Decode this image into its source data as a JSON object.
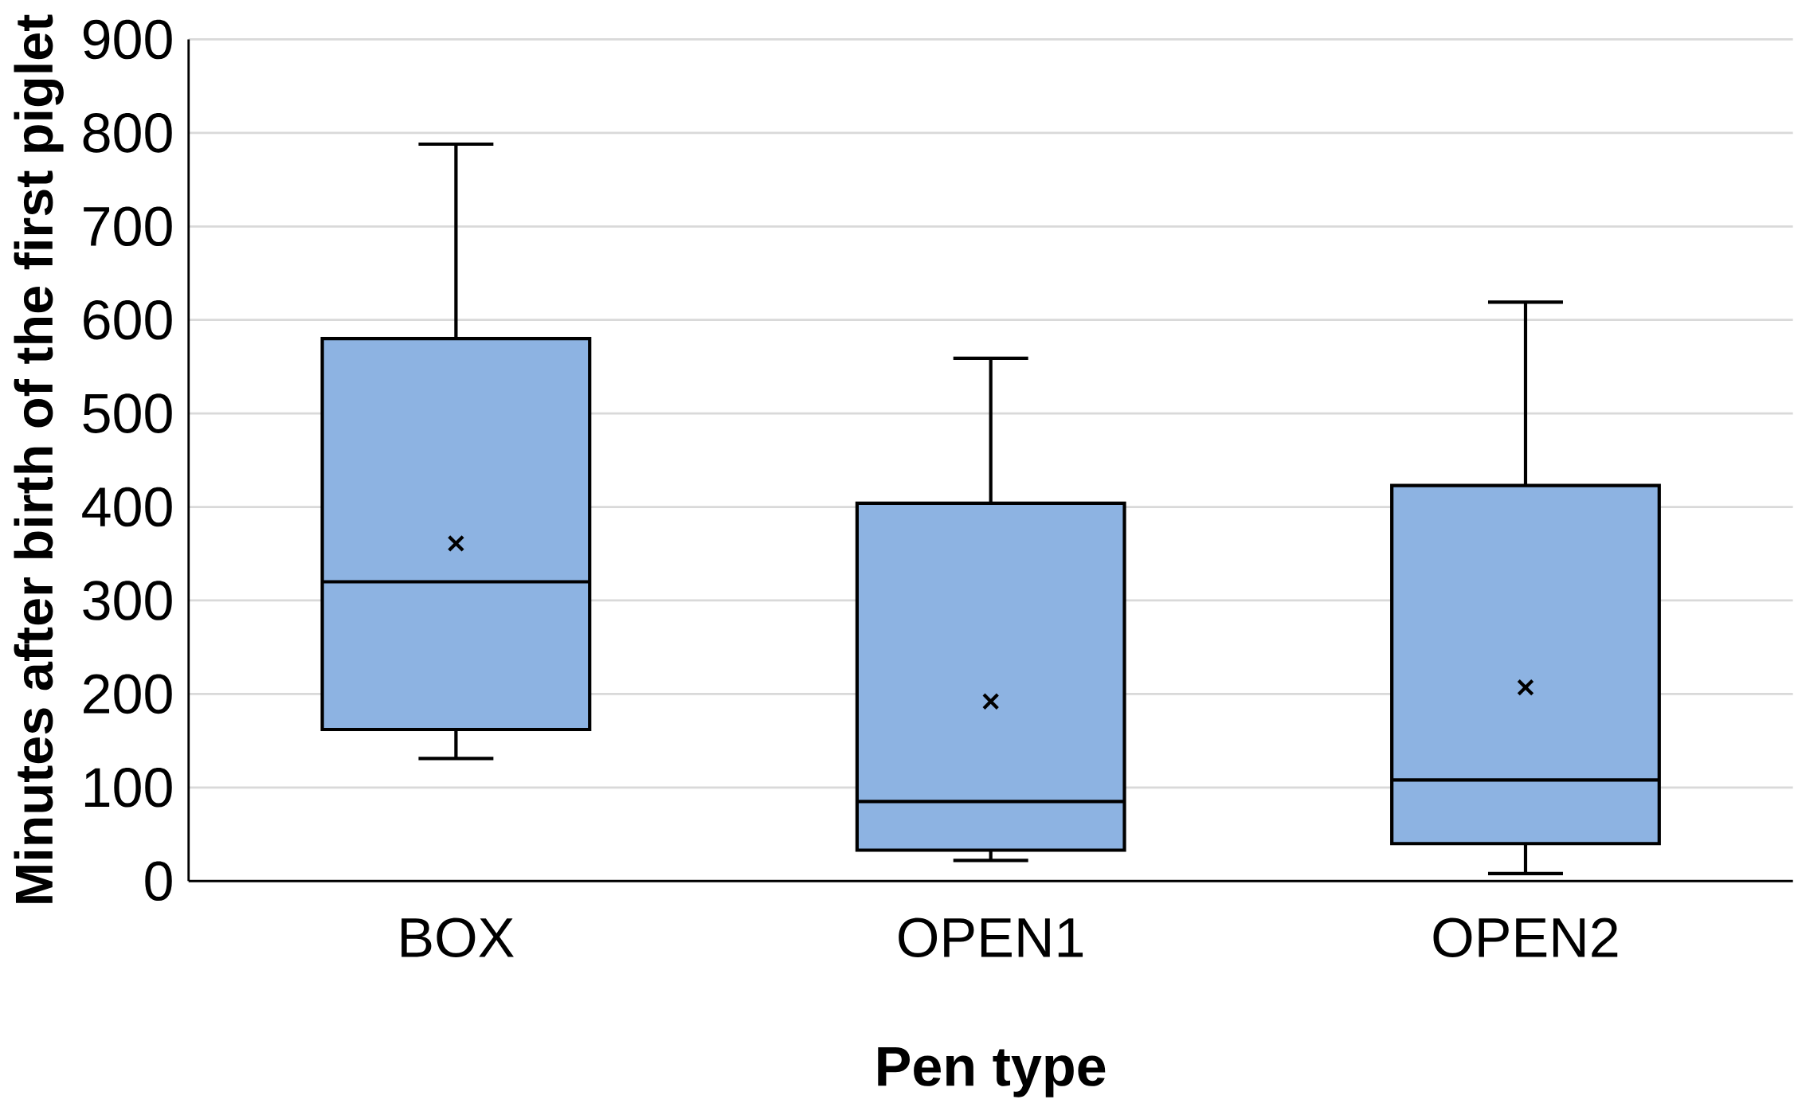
{
  "chart_data": {
    "type": "box",
    "xlabel": "Pen type",
    "ylabel": "Minutes after birth of the first piglet",
    "categories": [
      "BOX",
      "OPEN1",
      "OPEN2"
    ],
    "boxes": [
      {
        "low": 131,
        "q1": 162,
        "median": 320,
        "q3": 580,
        "high": 788,
        "mean": 361
      },
      {
        "low": 22,
        "q1": 33,
        "median": 85,
        "q3": 404,
        "high": 559,
        "mean": 192
      },
      {
        "low": 8,
        "q1": 40,
        "median": 108,
        "q3": 423,
        "high": 619,
        "mean": 207
      }
    ],
    "color": "#8db3e2",
    "ylim": [
      0,
      900
    ],
    "yticks": [
      0,
      100,
      200,
      300,
      400,
      500,
      600,
      700,
      800,
      900
    ],
    "grid": "y"
  }
}
